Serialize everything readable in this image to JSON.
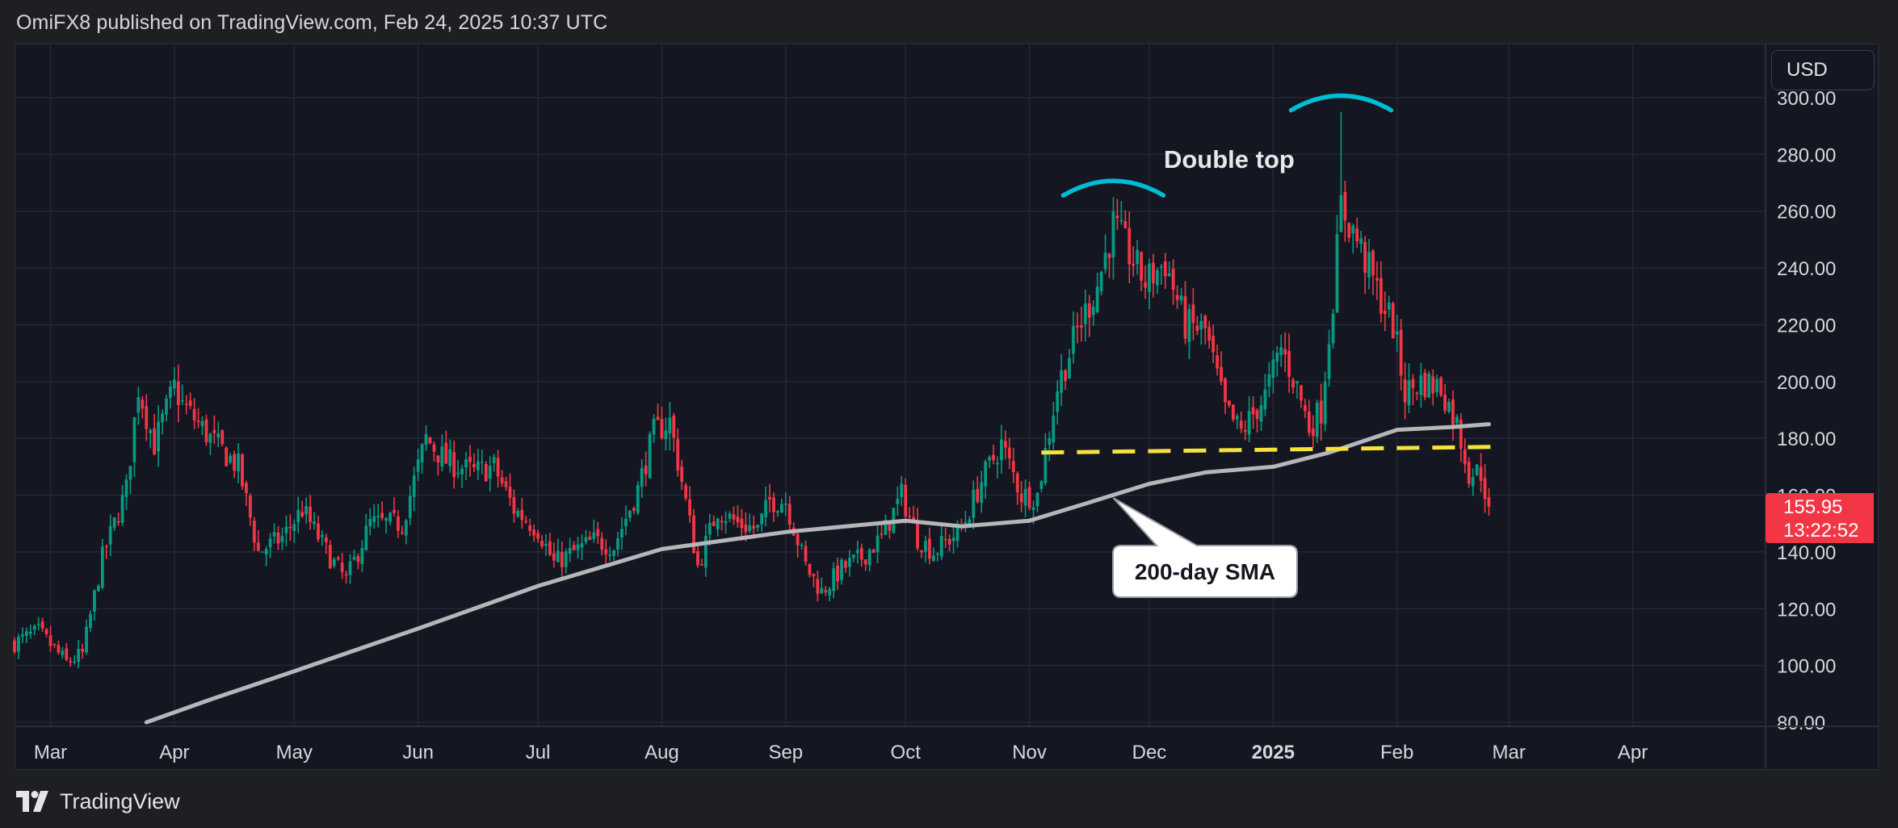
{
  "header": {
    "text": "OmiFX8 published on TradingView.com, Feb 24, 2025 10:37 UTC"
  },
  "brand": {
    "name": "TradingView"
  },
  "currency_button": {
    "label": "USD"
  },
  "last_price": {
    "price": "155.95",
    "countdown": "13:22:52"
  },
  "annotations": {
    "double_top": "Double top",
    "sma_callout": "200-day SMA"
  },
  "colors": {
    "background": "#141722",
    "up_candle": "#089981",
    "down_candle": "#f23645",
    "sma_line": "#b5b6b9",
    "arc": "#00bcd4",
    "support_line": "#f5e23c",
    "grid": "#232735"
  },
  "chart_data": {
    "type": "candlestick",
    "title": "",
    "xlabel": "",
    "ylabel": "",
    "ylim": [
      80,
      300
    ],
    "y_ticks": [
      80,
      100,
      120,
      140,
      160,
      180,
      200,
      220,
      240,
      260,
      280,
      300
    ],
    "y_tick_labels": [
      "80.00",
      "100.00",
      "120.00",
      "140.00",
      "160.00",
      "180.00",
      "200.00",
      "220.00",
      "240.00",
      "260.00",
      "280.00",
      "300.00"
    ],
    "x_range": [
      "2024-02-21",
      "2025-05-01"
    ],
    "x_ticks": [
      {
        "date": "2024-03-01",
        "label": "Mar",
        "bold": false
      },
      {
        "date": "2024-04-01",
        "label": "Apr",
        "bold": false
      },
      {
        "date": "2024-05-01",
        "label": "May",
        "bold": false
      },
      {
        "date": "2024-06-01",
        "label": "Jun",
        "bold": false
      },
      {
        "date": "2024-07-01",
        "label": "Jul",
        "bold": false
      },
      {
        "date": "2024-08-01",
        "label": "Aug",
        "bold": false
      },
      {
        "date": "2024-09-01",
        "label": "Sep",
        "bold": false
      },
      {
        "date": "2024-10-01",
        "label": "Oct",
        "bold": false
      },
      {
        "date": "2024-11-01",
        "label": "Nov",
        "bold": false
      },
      {
        "date": "2024-12-01",
        "label": "Dec",
        "bold": false
      },
      {
        "date": "2025-01-01",
        "label": "2025",
        "bold": true
      },
      {
        "date": "2025-02-01",
        "label": "Feb",
        "bold": false
      },
      {
        "date": "2025-03-01",
        "label": "Mar",
        "bold": false
      },
      {
        "date": "2025-04-01",
        "label": "Apr",
        "bold": false
      }
    ],
    "price_path": [
      [
        "2024-02-21",
        108
      ],
      [
        "2024-02-27",
        112
      ],
      [
        "2024-03-05",
        101
      ],
      [
        "2024-03-09",
        104
      ],
      [
        "2024-03-14",
        138
      ],
      [
        "2024-03-20",
        162
      ],
      [
        "2024-03-23",
        198
      ],
      [
        "2024-03-27",
        178
      ],
      [
        "2024-04-01",
        198
      ],
      [
        "2024-04-03",
        192
      ],
      [
        "2024-04-10",
        180
      ],
      [
        "2024-04-17",
        170
      ],
      [
        "2024-04-22",
        140
      ],
      [
        "2024-04-28",
        145
      ],
      [
        "2024-05-03",
        155
      ],
      [
        "2024-05-10",
        138
      ],
      [
        "2024-05-14",
        130
      ],
      [
        "2024-05-20",
        150
      ],
      [
        "2024-05-28",
        150
      ],
      [
        "2024-06-03",
        180
      ],
      [
        "2024-06-08",
        172
      ],
      [
        "2024-06-15",
        168
      ],
      [
        "2024-06-20",
        170
      ],
      [
        "2024-06-25",
        155
      ],
      [
        "2024-07-01",
        148
      ],
      [
        "2024-07-05",
        136
      ],
      [
        "2024-07-10",
        140
      ],
      [
        "2024-07-15",
        144
      ],
      [
        "2024-07-20",
        142
      ],
      [
        "2024-07-26",
        162
      ],
      [
        "2024-07-30",
        182
      ],
      [
        "2024-08-03",
        186
      ],
      [
        "2024-08-06",
        165
      ],
      [
        "2024-08-10",
        135
      ],
      [
        "2024-08-15",
        155
      ],
      [
        "2024-08-20",
        150
      ],
      [
        "2024-08-25",
        148
      ],
      [
        "2024-08-28",
        158
      ],
      [
        "2024-09-01",
        158
      ],
      [
        "2024-09-06",
        135
      ],
      [
        "2024-09-10",
        126
      ],
      [
        "2024-09-15",
        134
      ],
      [
        "2024-09-20",
        138
      ],
      [
        "2024-09-25",
        145
      ],
      [
        "2024-09-30",
        160
      ],
      [
        "2024-10-04",
        145
      ],
      [
        "2024-10-08",
        140
      ],
      [
        "2024-10-15",
        148
      ],
      [
        "2024-10-20",
        165
      ],
      [
        "2024-10-25",
        178
      ],
      [
        "2024-10-30",
        160
      ],
      [
        "2024-11-03",
        160
      ],
      [
        "2024-11-08",
        198
      ],
      [
        "2024-11-13",
        218
      ],
      [
        "2024-11-18",
        234
      ],
      [
        "2024-11-22",
        255
      ],
      [
        "2024-11-26",
        245
      ],
      [
        "2024-11-30",
        235
      ],
      [
        "2024-12-05",
        242
      ],
      [
        "2024-12-10",
        220
      ],
      [
        "2024-12-15",
        218
      ],
      [
        "2024-12-20",
        190
      ],
      [
        "2024-12-24",
        182
      ],
      [
        "2024-12-30",
        195
      ],
      [
        "2025-01-03",
        212
      ],
      [
        "2025-01-07",
        198
      ],
      [
        "2025-01-10",
        184
      ],
      [
        "2025-01-13",
        190
      ],
      [
        "2025-01-16",
        230
      ],
      [
        "2025-01-18",
        262
      ],
      [
        "2025-01-22",
        250
      ],
      [
        "2025-01-27",
        232
      ],
      [
        "2025-01-31",
        220
      ],
      [
        "2025-02-03",
        196
      ],
      [
        "2025-02-07",
        200
      ],
      [
        "2025-02-12",
        198
      ],
      [
        "2025-02-16",
        185
      ],
      [
        "2025-02-19",
        168
      ],
      [
        "2025-02-22",
        168
      ],
      [
        "2025-02-24",
        156
      ]
    ],
    "sma_200": [
      [
        "2024-03-25",
        80
      ],
      [
        "2024-04-10",
        88
      ],
      [
        "2024-05-01",
        98
      ],
      [
        "2024-06-01",
        113
      ],
      [
        "2024-07-01",
        128
      ],
      [
        "2024-08-01",
        141
      ],
      [
        "2024-09-01",
        147
      ],
      [
        "2024-10-01",
        151
      ],
      [
        "2024-10-15",
        149
      ],
      [
        "2024-11-01",
        151
      ],
      [
        "2024-11-15",
        157
      ],
      [
        "2024-12-01",
        164
      ],
      [
        "2024-12-15",
        168
      ],
      [
        "2025-01-01",
        170
      ],
      [
        "2025-01-15",
        175
      ],
      [
        "2025-02-01",
        183
      ],
      [
        "2025-02-15",
        184
      ],
      [
        "2025-02-24",
        185
      ]
    ],
    "support_line": {
      "from": [
        "2024-11-04",
        175
      ],
      "to": [
        "2025-02-25",
        177
      ]
    },
    "peaks": [
      {
        "date": "2024-11-22",
        "high": 265
      },
      {
        "date": "2025-01-18",
        "high": 295
      }
    ],
    "last": {
      "date": "2025-02-24",
      "close": 155.95
    }
  }
}
